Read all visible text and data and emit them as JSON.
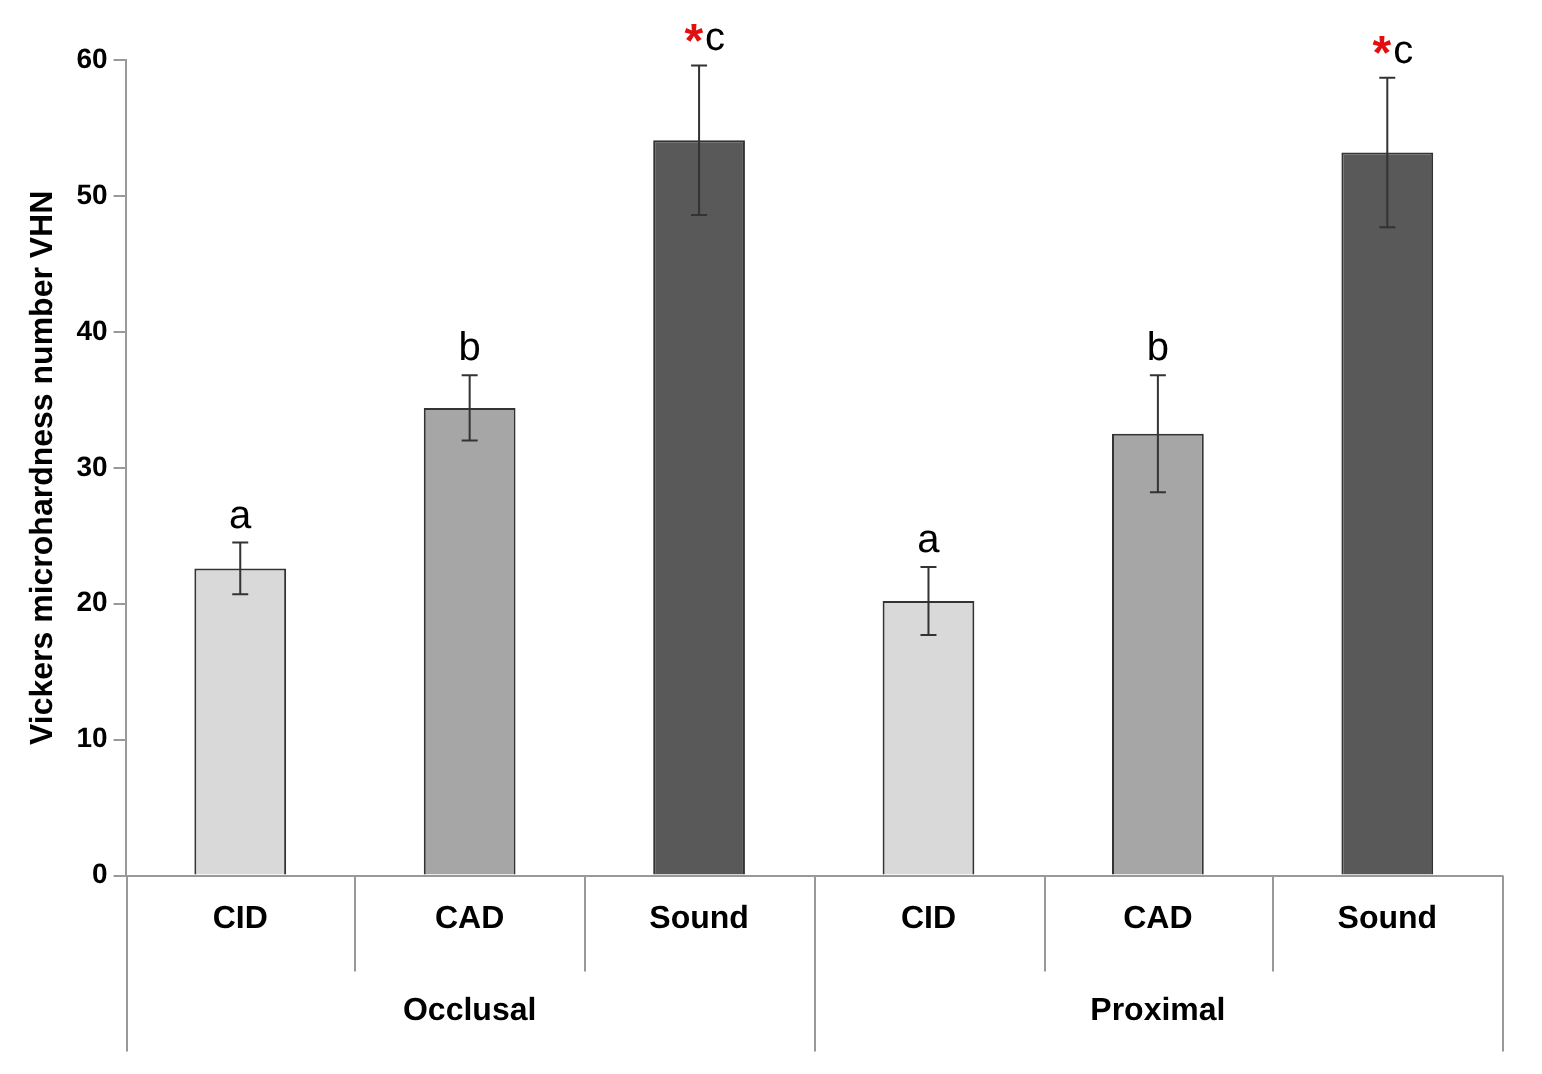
{
  "chart_data": {
    "type": "bar",
    "ylabel": "Vickers microhardness number VHN",
    "categories": [
      "CID",
      "CAD",
      "Sound",
      "CID",
      "CAD",
      "Sound"
    ],
    "values": [
      22.6,
      34.4,
      54.1,
      20.2,
      32.5,
      53.2
    ],
    "errors": [
      1.9,
      2.4,
      5.5,
      2.5,
      4.3,
      5.5
    ],
    "colors": [
      "#d9d9d9",
      "#a6a6a6",
      "#595959",
      "#d9d9d9",
      "#a6a6a6",
      "#595959"
    ],
    "value_labels": [
      "a",
      "b",
      "*c",
      "a",
      "b",
      "*c"
    ],
    "annotations": [
      "Occlusal",
      "Proximal"
    ],
    "ylim": [
      0,
      60
    ],
    "yticks": [
      0,
      10,
      20,
      30,
      40,
      50,
      60
    ],
    "grid": false,
    "legend": false
  }
}
